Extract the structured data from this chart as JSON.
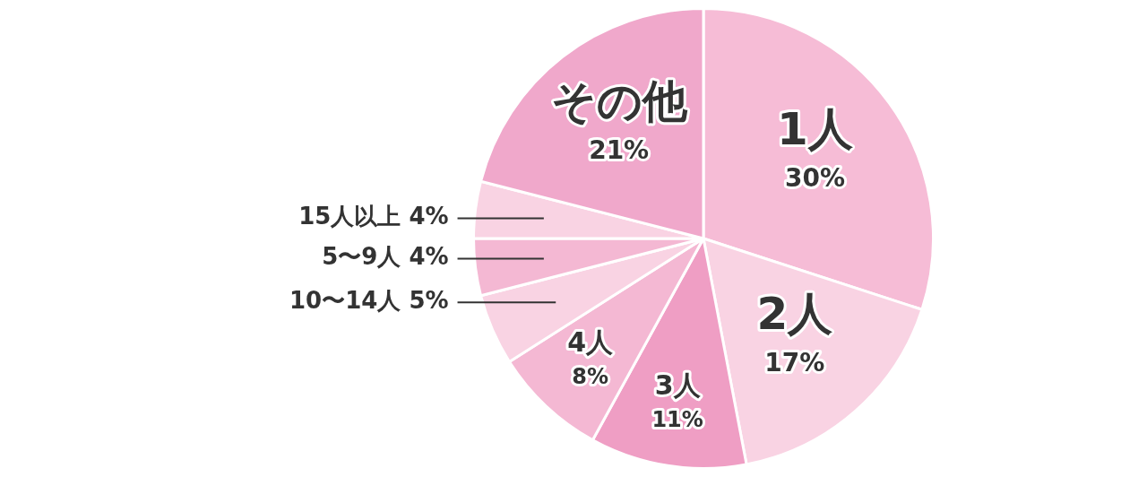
{
  "chart_data": {
    "type": "pie",
    "categories": [
      "1人",
      "2人",
      "3人",
      "4人",
      "10〜14人",
      "5〜9人",
      "15人以上",
      "その他"
    ],
    "values": [
      30,
      17,
      11,
      8,
      5,
      4,
      4,
      21
    ],
    "value_labels": [
      "30%",
      "17%",
      "11%",
      "8%",
      "5%",
      "4%",
      "4%",
      "21%"
    ],
    "colors": [
      "#f6bcd6",
      "#f9d3e3",
      "#ef9ec4",
      "#f4b8d3",
      "#f9d3e3",
      "#f4b8d3",
      "#f9d3e3",
      "#f0a8cb"
    ],
    "legend": false
  }
}
